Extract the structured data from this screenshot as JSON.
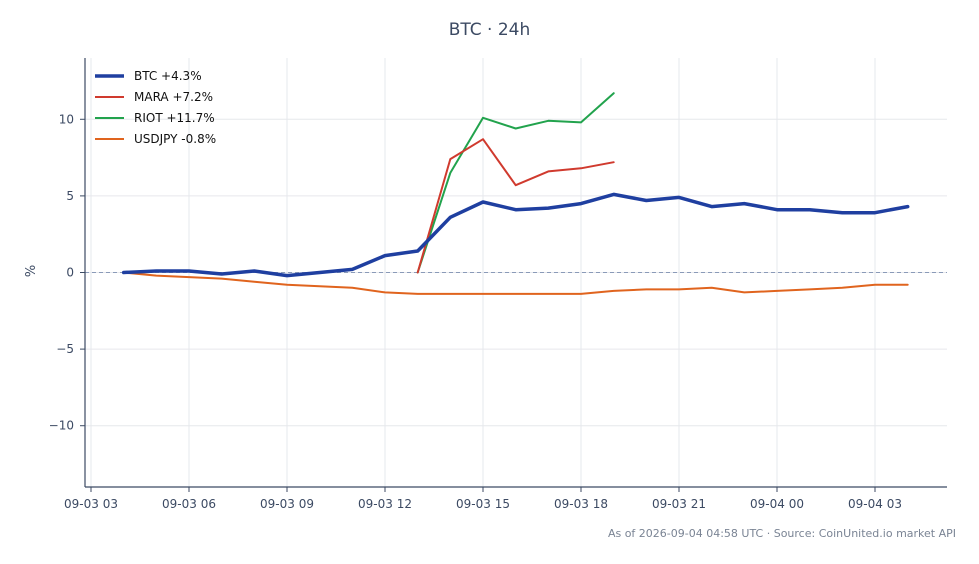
{
  "chart_data": {
    "type": "line",
    "title": "BTC · 24h",
    "xlabel": "",
    "ylabel": "%",
    "ylim": [
      -14,
      14
    ],
    "y_ticks": [
      -10,
      -5,
      0,
      5,
      10
    ],
    "y_tick_labels": [
      "−10",
      "−5",
      "0",
      "5",
      "10"
    ],
    "x_range": [
      "2026-09-03 03:00",
      "2026-09-04 06:00"
    ],
    "x_ticks": [
      "2026-09-03 03:00",
      "2026-09-03 06:00",
      "2026-09-03 09:00",
      "2026-09-03 12:00",
      "2026-09-03 15:00",
      "2026-09-03 18:00",
      "2026-09-03 21:00",
      "2026-09-04 00:00",
      "2026-09-04 03:00"
    ],
    "x_tick_labels": [
      "09-03 03",
      "09-03 06",
      "09-03 09",
      "09-03 12",
      "09-03 15",
      "09-03 18",
      "09-03 21",
      "09-04 00",
      "09-04 03"
    ],
    "grid": true,
    "zero_line": true,
    "legend_position": "top-left",
    "series": [
      {
        "name": "BTC +4.3%",
        "color": "#1f3fa0",
        "x": [
          "2026-09-03 04:00",
          "2026-09-03 05:00",
          "2026-09-03 06:00",
          "2026-09-03 07:00",
          "2026-09-03 08:00",
          "2026-09-03 09:00",
          "2026-09-03 10:00",
          "2026-09-03 11:00",
          "2026-09-03 12:00",
          "2026-09-03 13:00",
          "2026-09-03 14:00",
          "2026-09-03 15:00",
          "2026-09-03 16:00",
          "2026-09-03 17:00",
          "2026-09-03 18:00",
          "2026-09-03 19:00",
          "2026-09-03 20:00",
          "2026-09-03 21:00",
          "2026-09-03 22:00",
          "2026-09-03 23:00",
          "2026-09-04 00:00",
          "2026-09-04 01:00",
          "2026-09-04 02:00",
          "2026-09-04 03:00",
          "2026-09-04 04:00"
        ],
        "values": [
          0.0,
          0.1,
          0.1,
          -0.1,
          0.1,
          -0.2,
          0.0,
          0.2,
          1.1,
          1.4,
          3.6,
          4.6,
          4.1,
          4.2,
          4.5,
          5.1,
          4.7,
          4.9,
          4.3,
          4.5,
          4.1,
          4.1,
          3.9,
          3.9,
          4.3
        ]
      },
      {
        "name": "MARA +7.2%",
        "color": "#d03a2e",
        "x": [
          "2026-09-03 13:00",
          "2026-09-03 14:00",
          "2026-09-03 15:00",
          "2026-09-03 16:00",
          "2026-09-03 17:00",
          "2026-09-03 18:00",
          "2026-09-03 19:00"
        ],
        "values": [
          0.0,
          7.4,
          8.7,
          5.7,
          6.6,
          6.8,
          7.2
        ]
      },
      {
        "name": "RIOT +11.7%",
        "color": "#22a34d",
        "x": [
          "2026-09-03 13:00",
          "2026-09-03 14:00",
          "2026-09-03 15:00",
          "2026-09-03 16:00",
          "2026-09-03 17:00",
          "2026-09-03 18:00",
          "2026-09-03 19:00"
        ],
        "values": [
          0.0,
          6.5,
          10.1,
          9.4,
          9.9,
          9.8,
          11.7
        ]
      },
      {
        "name": "USDJPY -0.8%",
        "color": "#e0641e",
        "x": [
          "2026-09-03 04:00",
          "2026-09-03 05:00",
          "2026-09-03 06:00",
          "2026-09-03 07:00",
          "2026-09-03 08:00",
          "2026-09-03 09:00",
          "2026-09-03 10:00",
          "2026-09-03 11:00",
          "2026-09-03 12:00",
          "2026-09-03 13:00",
          "2026-09-03 14:00",
          "2026-09-03 15:00",
          "2026-09-03 16:00",
          "2026-09-03 17:00",
          "2026-09-03 18:00",
          "2026-09-03 19:00",
          "2026-09-03 20:00",
          "2026-09-03 21:00",
          "2026-09-03 22:00",
          "2026-09-03 23:00",
          "2026-09-04 00:00",
          "2026-09-04 01:00",
          "2026-09-04 02:00",
          "2026-09-04 03:00",
          "2026-09-04 04:00"
        ],
        "values": [
          0.0,
          -0.2,
          -0.3,
          -0.4,
          -0.6,
          -0.8,
          -0.9,
          -1.0,
          -1.3,
          -1.4,
          -1.4,
          -1.4,
          -1.4,
          -1.4,
          -1.4,
          -1.2,
          -1.1,
          -1.1,
          -1.0,
          -1.3,
          -1.2,
          -1.1,
          -1.0,
          -0.8,
          -0.8
        ]
      }
    ]
  },
  "footnote": "As of 2026-09-04 04:58 UTC · Source: CoinUnited.io market API"
}
